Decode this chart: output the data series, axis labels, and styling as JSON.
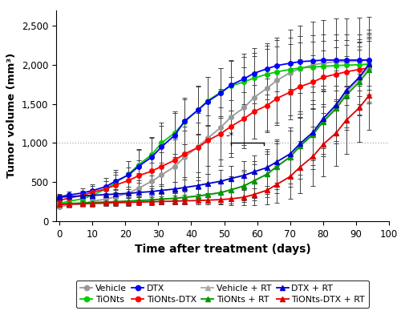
{
  "series": {
    "Vehicle": {
      "color": "#999999",
      "marker": "o",
      "markersize": 4,
      "x": [
        0,
        3,
        7,
        10,
        14,
        17,
        21,
        24,
        28,
        31,
        35,
        38,
        42,
        45,
        49,
        52,
        56,
        59,
        63,
        66,
        70,
        73,
        77,
        80,
        84,
        87,
        91,
        94
      ],
      "y": [
        185,
        205,
        225,
        255,
        280,
        310,
        360,
        420,
        510,
        590,
        700,
        820,
        950,
        1060,
        1200,
        1330,
        1450,
        1580,
        1700,
        1800,
        1900,
        1950,
        2000,
        2020,
        2040,
        2040,
        2050,
        2060
      ],
      "yerr": [
        25,
        35,
        45,
        60,
        75,
        100,
        140,
        190,
        240,
        290,
        340,
        390,
        430,
        460,
        490,
        510,
        520,
        530,
        540,
        545,
        548,
        550,
        552,
        553,
        553,
        553,
        553,
        553
      ]
    },
    "TiONts": {
      "color": "#00cc00",
      "marker": "o",
      "markersize": 4,
      "x": [
        0,
        3,
        7,
        10,
        14,
        17,
        21,
        24,
        28,
        31,
        35,
        38,
        42,
        45,
        49,
        52,
        56,
        59,
        63,
        66,
        70,
        73,
        77,
        80,
        84,
        87,
        91,
        94
      ],
      "y": [
        225,
        255,
        285,
        330,
        410,
        490,
        600,
        720,
        850,
        1000,
        1130,
        1270,
        1420,
        1540,
        1650,
        1730,
        1780,
        1830,
        1880,
        1910,
        1940,
        1960,
        1970,
        1980,
        1990,
        1995,
        2000,
        2010
      ],
      "yerr": [
        30,
        40,
        55,
        75,
        100,
        130,
        165,
        200,
        230,
        255,
        275,
        290,
        300,
        308,
        312,
        315,
        318,
        320,
        322,
        323,
        324,
        325,
        325,
        325,
        325,
        325,
        325,
        325
      ]
    },
    "DTX": {
      "color": "#0000ff",
      "marker": "o",
      "markersize": 4,
      "x": [
        0,
        3,
        7,
        10,
        14,
        17,
        21,
        24,
        28,
        31,
        35,
        38,
        42,
        45,
        49,
        52,
        56,
        59,
        63,
        66,
        70,
        73,
        77,
        80,
        84,
        87,
        91,
        94
      ],
      "y": [
        310,
        335,
        360,
        390,
        440,
        510,
        590,
        700,
        820,
        950,
        1100,
        1280,
        1420,
        1530,
        1640,
        1740,
        1820,
        1890,
        1950,
        1990,
        2020,
        2040,
        2050,
        2060,
        2060,
        2060,
        2060,
        2060
      ],
      "yerr": [
        35,
        45,
        60,
        80,
        110,
        145,
        180,
        210,
        240,
        265,
        285,
        300,
        310,
        315,
        320,
        323,
        325,
        326,
        327,
        328,
        328,
        328,
        328,
        328,
        328,
        328,
        328,
        328
      ]
    },
    "TiONts-DTX": {
      "color": "#ff0000",
      "marker": "o",
      "markersize": 4,
      "x": [
        0,
        3,
        7,
        10,
        14,
        17,
        21,
        24,
        28,
        31,
        35,
        38,
        42,
        45,
        49,
        52,
        56,
        59,
        63,
        66,
        70,
        73,
        77,
        80,
        84,
        87,
        91,
        94
      ],
      "y": [
        265,
        295,
        330,
        370,
        410,
        460,
        520,
        580,
        640,
        700,
        780,
        860,
        940,
        1030,
        1120,
        1210,
        1310,
        1400,
        1480,
        1570,
        1650,
        1720,
        1780,
        1840,
        1880,
        1910,
        1940,
        1960
      ],
      "yerr": [
        30,
        45,
        60,
        80,
        105,
        135,
        165,
        195,
        225,
        255,
        280,
        300,
        315,
        325,
        333,
        338,
        342,
        344,
        345,
        345,
        345,
        345,
        345,
        345,
        345,
        345,
        345,
        345
      ]
    },
    "Vehicle + RT": {
      "color": "#aaaaaa",
      "marker": "^",
      "markersize": 4,
      "x": [
        0,
        3,
        7,
        10,
        14,
        17,
        21,
        24,
        28,
        31,
        35,
        38,
        42,
        45,
        49,
        52,
        56,
        59,
        63,
        66,
        70,
        73,
        77,
        80,
        84,
        87,
        91,
        94
      ],
      "y": [
        200,
        210,
        218,
        225,
        233,
        240,
        248,
        258,
        268,
        278,
        290,
        303,
        318,
        338,
        365,
        400,
        450,
        515,
        600,
        700,
        820,
        960,
        1110,
        1280,
        1460,
        1640,
        1820,
        1980
      ],
      "yerr": [
        22,
        27,
        32,
        37,
        42,
        47,
        52,
        57,
        62,
        67,
        75,
        85,
        100,
        120,
        145,
        175,
        210,
        250,
        295,
        340,
        380,
        415,
        440,
        455,
        465,
        470,
        472,
        473
      ]
    },
    "TiONts + RT": {
      "color": "#009900",
      "marker": "^",
      "markersize": 4,
      "x": [
        0,
        3,
        7,
        10,
        14,
        17,
        21,
        24,
        28,
        31,
        35,
        38,
        42,
        45,
        49,
        52,
        56,
        59,
        63,
        66,
        70,
        73,
        77,
        80,
        84,
        87,
        91,
        94
      ],
      "y": [
        218,
        225,
        232,
        238,
        244,
        250,
        257,
        264,
        272,
        281,
        292,
        305,
        320,
        340,
        365,
        400,
        450,
        515,
        600,
        700,
        820,
        960,
        1110,
        1270,
        1440,
        1610,
        1780,
        1940
      ],
      "yerr": [
        20,
        24,
        28,
        33,
        37,
        42,
        47,
        52,
        57,
        63,
        70,
        78,
        90,
        105,
        125,
        150,
        180,
        215,
        255,
        295,
        335,
        368,
        390,
        405,
        413,
        416,
        417,
        417
      ]
    },
    "DTX + RT": {
      "color": "#0000cc",
      "marker": "^",
      "markersize": 4,
      "x": [
        0,
        3,
        7,
        10,
        14,
        17,
        21,
        24,
        28,
        31,
        35,
        38,
        42,
        45,
        49,
        52,
        56,
        59,
        63,
        66,
        70,
        73,
        77,
        80,
        84,
        87,
        91,
        94
      ],
      "y": [
        305,
        315,
        323,
        330,
        338,
        346,
        355,
        366,
        378,
        393,
        410,
        430,
        455,
        480,
        510,
        545,
        585,
        630,
        685,
        760,
        860,
        990,
        1140,
        1310,
        1490,
        1670,
        1840,
        2010
      ],
      "yerr": [
        28,
        32,
        37,
        42,
        47,
        52,
        58,
        64,
        71,
        78,
        87,
        97,
        110,
        125,
        142,
        162,
        184,
        208,
        235,
        267,
        300,
        332,
        358,
        376,
        386,
        391,
        393,
        394
      ]
    },
    "TiONts-DTX + RT": {
      "color": "#dd0000",
      "marker": "^",
      "markersize": 4,
      "x": [
        0,
        3,
        7,
        10,
        14,
        17,
        21,
        24,
        28,
        31,
        35,
        38,
        42,
        45,
        49,
        52,
        56,
        59,
        63,
        66,
        70,
        73,
        77,
        80,
        84,
        87,
        91,
        94
      ],
      "y": [
        213,
        218,
        222,
        227,
        231,
        235,
        239,
        243,
        247,
        251,
        255,
        259,
        263,
        268,
        275,
        285,
        305,
        340,
        395,
        470,
        570,
        690,
        830,
        980,
        1130,
        1290,
        1450,
        1610
      ],
      "yerr": [
        18,
        20,
        22,
        24,
        26,
        28,
        30,
        32,
        34,
        36,
        39,
        42,
        47,
        54,
        66,
        82,
        106,
        140,
        182,
        232,
        285,
        336,
        376,
        406,
        425,
        435,
        440,
        442
      ]
    }
  },
  "ylabel": "Tumor volume (mm³)",
  "xlabel": "Time after treatment (days)",
  "ylim": [
    0,
    2700
  ],
  "xlim": [
    -1,
    100
  ],
  "yticks": [
    0,
    500,
    1000,
    1500,
    2000,
    2500
  ],
  "xticks": [
    0,
    10,
    20,
    30,
    40,
    50,
    60,
    70,
    80,
    90,
    100
  ],
  "hline_y": 1000,
  "bracket_x1": 52,
  "bracket_x2": 62,
  "bracket_y": 1000,
  "bracket_ytick": 970,
  "legend_order": [
    "Vehicle",
    "TiONts",
    "DTX",
    "TiONts-DTX",
    "Vehicle + RT",
    "TiONts + RT",
    "DTX + RT",
    "TiONts-DTX + RT"
  ]
}
